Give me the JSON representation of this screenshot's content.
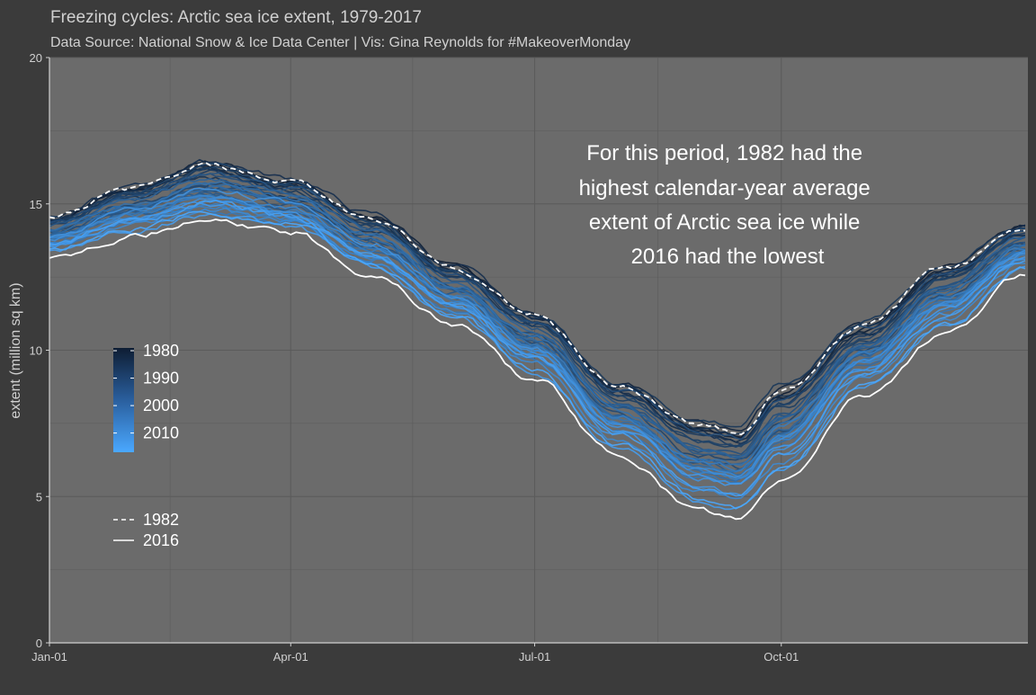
{
  "chart_data": {
    "type": "line",
    "title": "Freezing cycles: Arctic sea ice extent, 1979-2017",
    "subtitle": "Data Source: National Snow & Ice Data Center | Vis: Gina Reynolds for #MakeoverMonday",
    "xlabel": "",
    "ylabel": "extent (million sq km)",
    "x_tick_labels": [
      "Jan-01",
      "Apr-01",
      "Jul-01",
      "Oct-01"
    ],
    "y_tick_labels": [
      "0",
      "5",
      "10",
      "15",
      "20"
    ],
    "y_ticks": [
      0,
      5,
      10,
      15,
      20
    ],
    "ylim": [
      0,
      20
    ],
    "x_axis": "day of year",
    "annotation": [
      "For this period, 1982 had the",
      "highest calendar-year average",
      "extent of Arctic sea ice while",
      "2016 had the lowest"
    ],
    "year_range": [
      1979,
      2017
    ],
    "color_scale": {
      "low_color": "#0e1d33",
      "high_color": "#4aa8ff",
      "legend_labels": [
        "1980",
        "1990",
        "2000",
        "2010"
      ],
      "legend_values": [
        1980,
        1990,
        2000,
        2010
      ],
      "legend_placement": "left"
    },
    "highlight_legend": [
      {
        "label": "1982",
        "style": "dashed",
        "color": "#ffffff"
      },
      {
        "label": "2016",
        "style": "solid",
        "color": "#ffffff"
      }
    ],
    "series": [
      {
        "name": "1982",
        "style": "dashed",
        "color": "#ffffff",
        "x": [
          "Jan-01",
          "Feb-01",
          "Mar-01",
          "Apr-01",
          "May-01",
          "Jun-01",
          "Jul-01",
          "Aug-01",
          "Sep-01",
          "Sep-15",
          "Oct-01",
          "Nov-01",
          "Dec-01",
          "Dec-31"
        ],
        "values": [
          14.5,
          15.5,
          16.3,
          15.7,
          14.5,
          12.8,
          11.2,
          8.8,
          7.4,
          7.2,
          8.6,
          10.8,
          12.8,
          14.2
        ]
      },
      {
        "name": "2016",
        "style": "solid",
        "color": "#ffffff",
        "x": [
          "Jan-01",
          "Feb-01",
          "Mar-01",
          "Apr-01",
          "May-01",
          "Jun-01",
          "Jul-01",
          "Aug-01",
          "Sep-01",
          "Sep-15",
          "Oct-01",
          "Nov-01",
          "Dec-01",
          "Dec-31"
        ],
        "values": [
          13.2,
          13.9,
          14.4,
          14.0,
          12.6,
          10.9,
          9.0,
          6.4,
          4.5,
          4.2,
          5.5,
          8.5,
          10.5,
          12.6
        ]
      }
    ],
    "grid": true,
    "grid_color": "#5b5b5b",
    "panel_color": "#6b6b6b",
    "background_color": "#3b3b3b"
  }
}
